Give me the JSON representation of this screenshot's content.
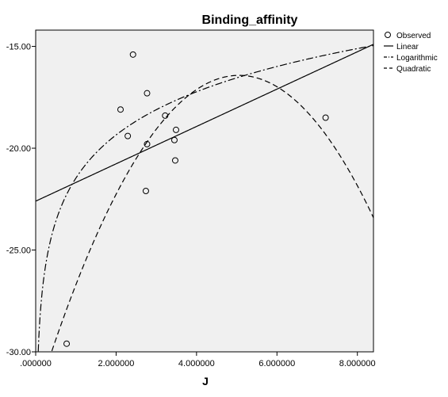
{
  "chart_data": {
    "type": "scatter",
    "title": "Binding_affinity",
    "xlabel": "J",
    "ylabel": "",
    "xlim": [
      0,
      8.4
    ],
    "ylim": [
      -30,
      -14.2
    ],
    "x_ticks": [
      0,
      2,
      4,
      6,
      8
    ],
    "x_tick_labels": [
      ".000000",
      "2.000000",
      "4.000000",
      "6.000000",
      "8.000000"
    ],
    "y_ticks": [
      -30,
      -25,
      -20,
      -15
    ],
    "y_tick_labels": [
      "-30.00",
      "-25.00",
      "-20.00",
      "-15.00"
    ],
    "grid": false,
    "legend_position": "top-right",
    "series": [
      {
        "name": "Observed",
        "kind": "points",
        "points": [
          {
            "x": 0.77,
            "y": -29.6
          },
          {
            "x": 2.11,
            "y": -18.1
          },
          {
            "x": 2.29,
            "y": -19.4
          },
          {
            "x": 2.42,
            "y": -15.4
          },
          {
            "x": 2.74,
            "y": -22.1
          },
          {
            "x": 2.77,
            "y": -19.8
          },
          {
            "x": 2.77,
            "y": -17.3
          },
          {
            "x": 3.22,
            "y": -18.4
          },
          {
            "x": 3.45,
            "y": -19.6
          },
          {
            "x": 3.47,
            "y": -20.6
          },
          {
            "x": 3.49,
            "y": -19.1
          },
          {
            "x": 7.21,
            "y": -18.5
          }
        ]
      },
      {
        "name": "Linear",
        "kind": "line",
        "dash": "",
        "intercept": -22.6,
        "slope": 0.917
      },
      {
        "name": "Logarithmic",
        "kind": "line",
        "dash": "9,3,2,3",
        "a": -21.47,
        "b": 3.06
      },
      {
        "name": "Quadratic",
        "kind": "line",
        "dash": "7,4",
        "a": -32.4,
        "b": 6.32,
        "c": -0.625
      }
    ],
    "colors": {
      "plot_background": "#f0f0f0",
      "plot_border": "#000000",
      "line": "#000000",
      "marker_stroke": "#000000"
    }
  }
}
